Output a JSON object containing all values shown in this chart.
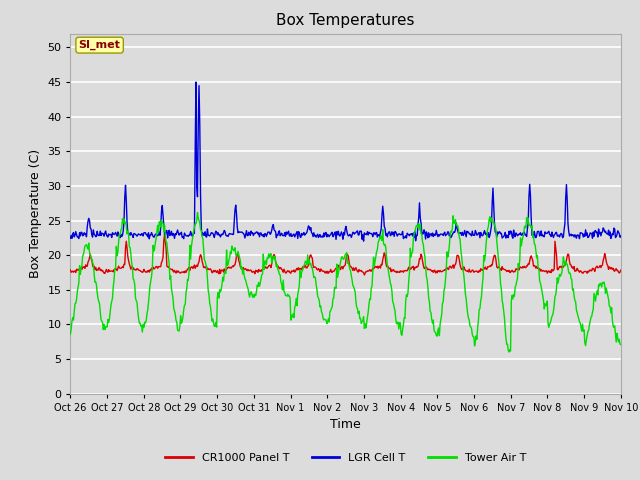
{
  "title": "Box Temperatures",
  "ylabel": "Box Temperature (C)",
  "xlabel": "Time",
  "ylim": [
    0,
    52
  ],
  "yticks": [
    0,
    5,
    10,
    15,
    20,
    25,
    30,
    35,
    40,
    45,
    50
  ],
  "bg_color": "#dcdcdc",
  "plot_bg_color": "#dcdcdc",
  "grid_color": "#ffffff",
  "x_labels": [
    "Oct 26",
    "Oct 27",
    "Oct 28",
    "Oct 29",
    "Oct 30",
    "Oct 31",
    "Nov 1",
    "Nov 2",
    "Nov 3",
    "Nov 4",
    "Nov 5",
    "Nov 6",
    "Nov 7",
    "Nov 8",
    "Nov 9",
    "Nov 10"
  ],
  "legend_items": [
    {
      "label": "CR1000 Panel T",
      "color": "#dd0000"
    },
    {
      "label": "LGR Cell T",
      "color": "#0000dd"
    },
    {
      "label": "Tower Air T",
      "color": "#00dd00"
    }
  ],
  "annotation_text": "SI_met",
  "annotation_color": "#880000",
  "annotation_bg": "#ffffaa",
  "title_fontsize": 11,
  "axis_fontsize": 9,
  "tick_fontsize": 8
}
